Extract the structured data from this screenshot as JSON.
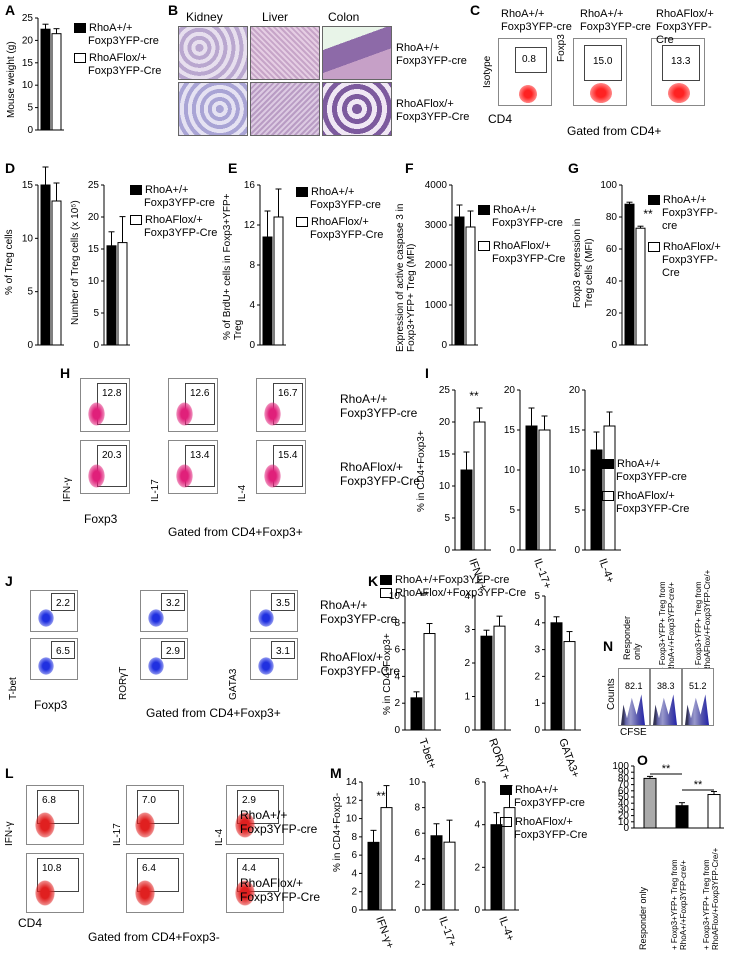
{
  "legend": {
    "wt": "RhoA+/+",
    "wt_sub": "Foxp3YFP-cre",
    "ko": "RhoAFlox/+",
    "ko_sub": "Foxp3YFP-Cre"
  },
  "panels": {
    "A": {
      "label": "A",
      "ylabel": "Mouse weight (g)",
      "ticks": [
        "0",
        "5",
        "10",
        "15",
        "20",
        "25"
      ]
    },
    "B": {
      "label": "B",
      "tissues": [
        "Kidney",
        "Liver",
        "Colon"
      ]
    },
    "C": {
      "label": "C",
      "gates": [
        "0.8",
        "15.0",
        "13.3"
      ],
      "ylabels": [
        "Isotype",
        "Foxp3"
      ],
      "xlabel": "CD4",
      "gated": "Gated from CD4+"
    },
    "D": {
      "label": "D",
      "ylabel1": "% of Treg cells",
      "ylabel2": "Number of Treg cells (x 10⁵)",
      "ticks1": [
        "0",
        "5",
        "10",
        "15"
      ],
      "ticks2": [
        "0",
        "5",
        "10",
        "15",
        "20",
        "25"
      ]
    },
    "E": {
      "label": "E",
      "ylabel": "% of BrdU+ cells in Foxp3+YFP+ Treg",
      "ticks": [
        "0",
        "4",
        "8",
        "12",
        "16"
      ]
    },
    "F": {
      "label": "F",
      "ylabel": "Expression of active caspase 3 in Foxp3+YFP+ Treg (MFI)",
      "ticks": [
        "0",
        "1000",
        "2000",
        "3000",
        "4000"
      ]
    },
    "G": {
      "label": "G",
      "ylabel": "Foxp3 expression in Treg cells (MFI)",
      "ticks": [
        "0",
        "20",
        "40",
        "60",
        "80",
        "100"
      ],
      "sig": "**"
    },
    "H": {
      "label": "H",
      "gates_top": [
        "12.8",
        "12.6",
        "16.7"
      ],
      "gates_bottom": [
        "20.3",
        "13.4",
        "15.4"
      ],
      "ylabels": [
        "IFN-γ",
        "IL-17",
        "IL-4"
      ],
      "xlabel": "Foxp3",
      "gated": "Gated from CD4+Foxp3+"
    },
    "I": {
      "label": "I",
      "ylabel": "% in CD4+Foxp3+",
      "cats": [
        "IFN-γ+",
        "IL-17+",
        "IL-4+"
      ],
      "sig": "**"
    },
    "J": {
      "label": "J",
      "gates_top": [
        "2.2",
        "3.2",
        "3.5"
      ],
      "gates_bottom": [
        "6.5",
        "2.9",
        "3.1"
      ],
      "ylabels": [
        "T-bet",
        "RORγT",
        "GATA3"
      ],
      "xlabel": "Foxp3",
      "gated": "Gated from CD4+Foxp3+"
    },
    "K": {
      "label": "K",
      "ylabel": "% in CD4+Foxp3+",
      "cats": [
        "T-bet+",
        "RORγT+",
        "GATA3+"
      ],
      "sig": "**"
    },
    "L": {
      "label": "L",
      "gates_top": [
        "6.8",
        "7.0",
        "2.9"
      ],
      "gates_bottom": [
        "10.8",
        "6.4",
        "4.4"
      ],
      "ylabels": [
        "IFN-γ",
        "IL-17",
        "IL-4"
      ],
      "xlabel": "CD4",
      "gated": "Gated from CD4+Foxp3-"
    },
    "M": {
      "label": "M",
      "ylabel": "% in CD4+Foxp3-",
      "cats": [
        "IFN-γ+",
        "IL-17+",
        "IL-4+"
      ],
      "sig": "**"
    },
    "N": {
      "label": "N",
      "titles": [
        "Responder only",
        "+ Foxp3+YFP+ Treg from RhoA+/+Foxp3YFP-cre/+",
        "+ Foxp3+YFP+ Treg from RhoAFlox/+Foxp3YFP-Cre/+"
      ],
      "gates": [
        "82.1",
        "38.3",
        "51.2"
      ],
      "ylabel": "Counts",
      "xlabel": "CFSE"
    },
    "O": {
      "label": "O",
      "ticks": [
        "0",
        "10",
        "20",
        "30",
        "40",
        "50",
        "60",
        "70",
        "80",
        "90",
        "100"
      ],
      "cats": [
        "Responder only",
        "+ Foxp3+YFP+ Treg from RhoA+/+Foxp3YFP-cre/+",
        "+ Foxp3+YFP+ Treg from RhoAFlox/+Foxp3YFP-Cre/+"
      ],
      "sig": [
        "**",
        "**"
      ]
    }
  },
  "chart_data": [
    {
      "type": "bar",
      "panel": "A",
      "categories": [
        "RhoA+/+ Foxp3YFP-cre",
        "RhoAFlox/+ Foxp3YFP-Cre"
      ],
      "values": [
        22.5,
        21.5
      ],
      "ylim": [
        0,
        25
      ],
      "ylabel": "Mouse weight (g)"
    },
    {
      "type": "bar",
      "panel": "D1",
      "categories": [
        "RhoA+/+",
        "RhoAFlox/+"
      ],
      "values": [
        15,
        13.5
      ],
      "ylim": [
        0,
        15
      ],
      "ylabel": "% of Treg cells"
    },
    {
      "type": "bar",
      "panel": "D2",
      "categories": [
        "RhoA+/+",
        "RhoAFlox/+"
      ],
      "values": [
        15.5,
        16
      ],
      "ylim": [
        0,
        25
      ],
      "ylabel": "Number of Treg cells (x 10⁵)"
    },
    {
      "type": "bar",
      "panel": "E",
      "categories": [
        "RhoA+/+",
        "RhoAFlox/+"
      ],
      "values": [
        10.8,
        12.8
      ],
      "ylim": [
        0,
        16
      ]
    },
    {
      "type": "bar",
      "panel": "F",
      "categories": [
        "RhoA+/+",
        "RhoAFlox/+"
      ],
      "values": [
        3200,
        2950
      ],
      "ylim": [
        0,
        4000
      ]
    },
    {
      "type": "bar",
      "panel": "G",
      "categories": [
        "RhoA+/+",
        "RhoAFlox/+"
      ],
      "values": [
        88,
        73
      ],
      "ylim": [
        0,
        100
      ]
    },
    {
      "type": "bar",
      "panel": "I",
      "categories": [
        "IFN-γ+",
        "IL-17+",
        "IL-4+"
      ],
      "series": [
        {
          "name": "RhoA+/+ Foxp3YFP-cre",
          "values": [
            12.5,
            15.5,
            12.5
          ]
        },
        {
          "name": "RhoAFlox/+ Foxp3YFP-Cre",
          "values": [
            20,
            15,
            15.5
          ]
        }
      ],
      "ylims": [
        [
          0,
          25
        ],
        [
          0,
          20
        ],
        [
          0,
          20
        ]
      ]
    },
    {
      "type": "bar",
      "panel": "K",
      "categories": [
        "T-bet+",
        "RORγT+",
        "GATA3+"
      ],
      "series": [
        {
          "name": "RhoA+/+Foxp3YFP-cre",
          "values": [
            2.4,
            2.8,
            4.0
          ]
        },
        {
          "name": "RhoAFlox/+Foxp3YFP-Cre",
          "values": [
            7.2,
            3.1,
            3.3
          ]
        }
      ],
      "ylims": [
        [
          0,
          10
        ],
        [
          0,
          4
        ],
        [
          0,
          5
        ]
      ]
    },
    {
      "type": "bar",
      "panel": "M",
      "categories": [
        "IFN-γ+",
        "IL-17+",
        "IL-4+"
      ],
      "series": [
        {
          "name": "RhoA+/+ Foxp3YFP-cre",
          "values": [
            7.4,
            5.8,
            4.0
          ]
        },
        {
          "name": "RhoAFlox/+ Foxp3YFP-Cre",
          "values": [
            11.2,
            5.3,
            4.8
          ]
        }
      ],
      "ylims": [
        [
          0,
          14
        ],
        [
          0,
          10
        ],
        [
          0,
          6
        ]
      ]
    },
    {
      "type": "bar",
      "panel": "O",
      "categories": [
        "Responder only",
        "+ Treg from RhoA+/+",
        "+ Treg from RhoAFlox/+"
      ],
      "values": [
        80,
        36,
        54
      ],
      "ylim": [
        0,
        100
      ]
    }
  ]
}
